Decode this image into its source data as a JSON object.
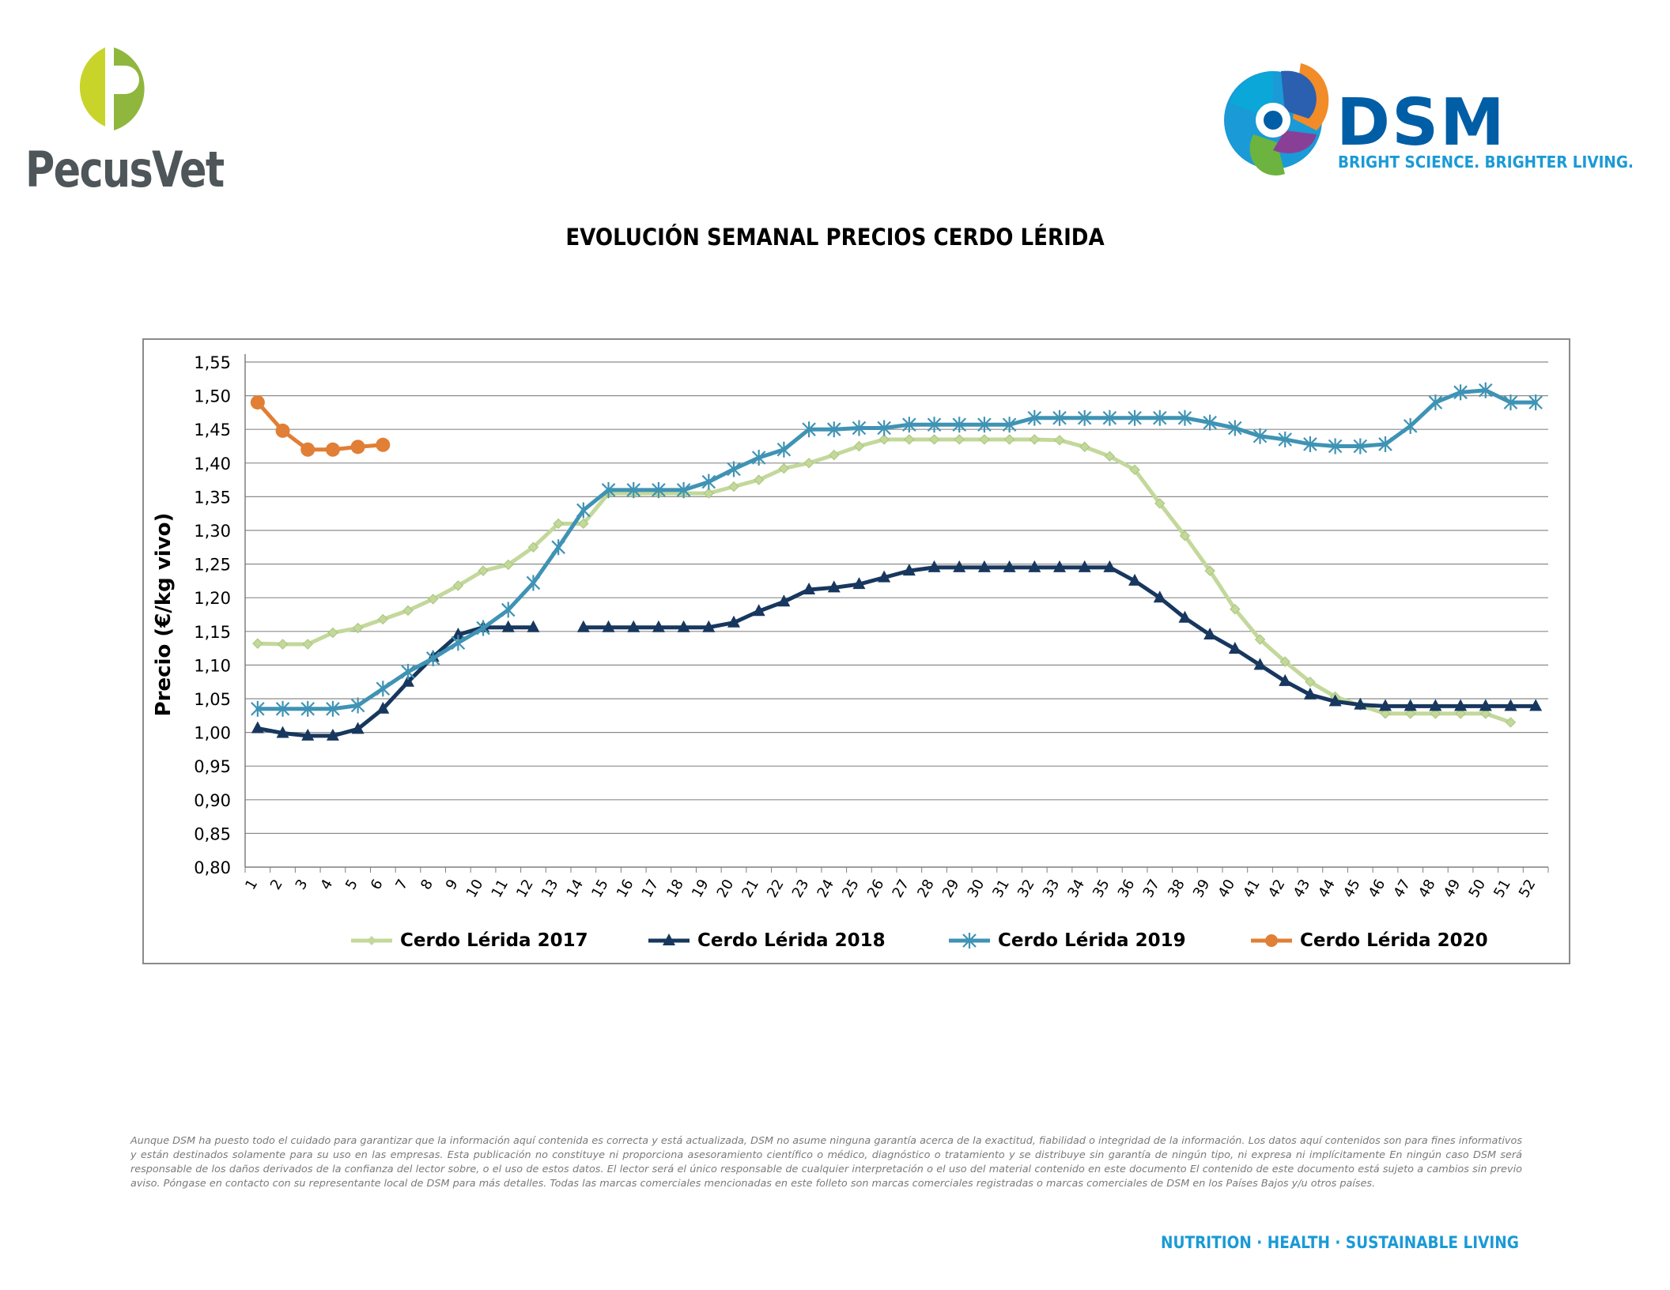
{
  "header": {
    "left_logo": {
      "text": "PecusVet",
      "colors": [
        "#c5d32c",
        "#8db63c",
        "#4f5659"
      ]
    },
    "right_logo": {
      "text": "DSM",
      "tagline": "BRIGHT SCIENCE. BRIGHTER LIVING.",
      "colors": [
        "#005ea6",
        "#1a9ad6",
        "#f28c28",
        "#6cb33f",
        "#8a3f96"
      ]
    }
  },
  "title": "EVOLUCIÓN SEMANAL PRECIOS CERDO LÉRIDA",
  "chart_data": {
    "type": "line",
    "title": "EVOLUCIÓN SEMANAL PRECIOS CERDO LÉRIDA",
    "xlabel": "",
    "ylabel": "Precio (€/kg vivo)",
    "x": [
      1,
      2,
      3,
      4,
      5,
      6,
      7,
      8,
      9,
      10,
      11,
      12,
      13,
      14,
      15,
      16,
      17,
      18,
      19,
      20,
      21,
      22,
      23,
      24,
      25,
      26,
      27,
      28,
      29,
      30,
      31,
      32,
      33,
      34,
      35,
      36,
      37,
      38,
      39,
      40,
      41,
      42,
      43,
      44,
      45,
      46,
      47,
      48,
      49,
      50,
      51,
      52
    ],
    "ylim": [
      0.8,
      1.55
    ],
    "yticks": [
      "0,80",
      "0,85",
      "0,90",
      "0,95",
      "1,00",
      "1,05",
      "1,10",
      "1,15",
      "1,20",
      "1,25",
      "1,30",
      "1,35",
      "1,40",
      "1,45",
      "1,50",
      "1,55"
    ],
    "grid": "horizontal",
    "legend_position": "bottom",
    "series": [
      {
        "name": "Cerdo Lérida 2017",
        "color": "#c3d89b",
        "marker": "diamond",
        "values": [
          1.132,
          1.131,
          1.131,
          1.148,
          1.155,
          1.168,
          1.181,
          1.198,
          1.218,
          1.24,
          1.249,
          1.275,
          1.31,
          1.31,
          1.355,
          1.355,
          1.355,
          1.355,
          1.355,
          1.365,
          1.375,
          1.392,
          1.4,
          1.412,
          1.425,
          1.435,
          1.435,
          1.435,
          1.435,
          1.435,
          1.435,
          1.435,
          1.434,
          1.424,
          1.41,
          1.39,
          1.34,
          1.292,
          1.24,
          1.183,
          1.138,
          1.105,
          1.075,
          1.053,
          1.04,
          1.028,
          1.028,
          1.028,
          1.028,
          1.028,
          1.015,
          null
        ]
      },
      {
        "name": "Cerdo Lérida 2018",
        "color": "#17375e",
        "marker": "triangle",
        "values": [
          1.006,
          0.999,
          0.995,
          0.995,
          1.005,
          1.035,
          1.075,
          1.112,
          1.145,
          1.156,
          1.156,
          1.156,
          null,
          1.156,
          1.156,
          1.156,
          1.156,
          1.156,
          1.156,
          1.163,
          1.18,
          1.194,
          1.212,
          1.215,
          1.22,
          1.23,
          1.24,
          1.245,
          1.245,
          1.245,
          1.245,
          1.245,
          1.245,
          1.245,
          1.245,
          1.225,
          1.2,
          1.17,
          1.145,
          1.124,
          1.1,
          1.076,
          1.056,
          1.046,
          1.041,
          1.039,
          1.039,
          1.039,
          1.039,
          1.039,
          1.039,
          1.039
        ]
      },
      {
        "name": "Cerdo Lérida 2019",
        "color": "#3f93b4",
        "marker": "star",
        "values": [
          1.035,
          1.035,
          1.035,
          1.035,
          1.04,
          1.065,
          1.09,
          1.11,
          1.133,
          1.155,
          1.182,
          1.222,
          1.275,
          1.33,
          1.36,
          1.36,
          1.36,
          1.36,
          1.372,
          1.391,
          1.408,
          1.42,
          1.45,
          1.45,
          1.452,
          1.452,
          1.457,
          1.457,
          1.457,
          1.457,
          1.457,
          1.467,
          1.467,
          1.467,
          1.467,
          1.467,
          1.467,
          1.467,
          1.46,
          1.452,
          1.44,
          1.435,
          1.428,
          1.425,
          1.425,
          1.428,
          1.455,
          1.49,
          1.505,
          1.508,
          1.49,
          1.49
        ]
      },
      {
        "name": "Cerdo Lérida 2020",
        "color": "#e07f35",
        "marker": "circle",
        "values": [
          1.49,
          1.448,
          1.42,
          1.42,
          1.424,
          1.427,
          null,
          null,
          null,
          null,
          null,
          null,
          null,
          null,
          null,
          null,
          null,
          null,
          null,
          null,
          null,
          null,
          null,
          null,
          null,
          null,
          null,
          null,
          null,
          null,
          null,
          null,
          null,
          null,
          null,
          null,
          null,
          null,
          null,
          null,
          null,
          null,
          null,
          null,
          null,
          null,
          null,
          null,
          null,
          null,
          null,
          null
        ]
      }
    ]
  },
  "disclaimer": "Aunque DSM ha puesto todo el cuidado para garantizar que la información aquí contenida es correcta y está actualizada, DSM no asume ninguna garantía acerca de la exactitud, fiabilidad o integridad de la información. Los datos aquí contenidos son para fines informativos y están destinados solamente para su uso en las empresas. Esta publicación no constituye ni proporciona asesoramiento científico o médico, diagnóstico o tratamiento y se distribuye sin garantía de ningún tipo, ni expresa ni implícitamente En ningún caso DSM será responsable de los daños derivados de la confianza del lector sobre, o el uso de estos datos. El lector será el único responsable de cualquier interpretación o el uso del material contenido en este documento El contenido de este documento está sujeto a cambios sin previo aviso. Póngase en contacto con su representante local de DSM para más detalles. Todas las marcas comerciales mencionadas en este folleto son marcas comerciales registradas o marcas comerciales de DSM en los Países Bajos y/u otros países.",
  "footer": {
    "tagline": "NUTRITION · HEALTH · SUSTAINABLE LIVING"
  }
}
